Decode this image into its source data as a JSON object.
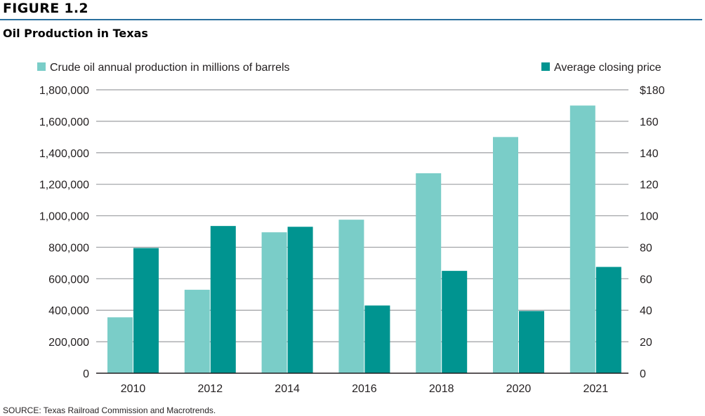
{
  "figure_label": "FIGURE 1.2",
  "source": "SOURCE: Texas Railroad Commission and Macrotrends.",
  "chart_data": {
    "type": "bar",
    "title": "Oil Production in Texas",
    "categories": [
      "2010",
      "2012",
      "2014",
      "2016",
      "2018",
      "2020",
      "2021"
    ],
    "series": [
      {
        "name": "Crude oil annual production in millions of barrels",
        "axis": "left",
        "color": "#7acdc8",
        "values": [
          355000,
          530000,
          895000,
          975000,
          1270000,
          1500000,
          1700000
        ]
      },
      {
        "name": "Average closing price",
        "axis": "right",
        "color": "#009490",
        "values": [
          79.5,
          93.5,
          93,
          43,
          65,
          39.5,
          67.5
        ]
      }
    ],
    "y_left": {
      "min": 0,
      "max": 1800000,
      "ticks": [
        "0",
        "200,000",
        "400,000",
        "600,000",
        "800,000",
        "1,000,000",
        "1,200,000",
        "1,400,000",
        "1,600,000",
        "1,800,000"
      ]
    },
    "y_right": {
      "min": 0,
      "max": 180,
      "ticks": [
        "0",
        "20",
        "40",
        "60",
        "80",
        "100",
        "120",
        "140",
        "160",
        "$180"
      ]
    },
    "grid": true,
    "legend_placement": "top",
    "gridline_color": "#9d9fa2",
    "axis_color": "#231f20"
  }
}
